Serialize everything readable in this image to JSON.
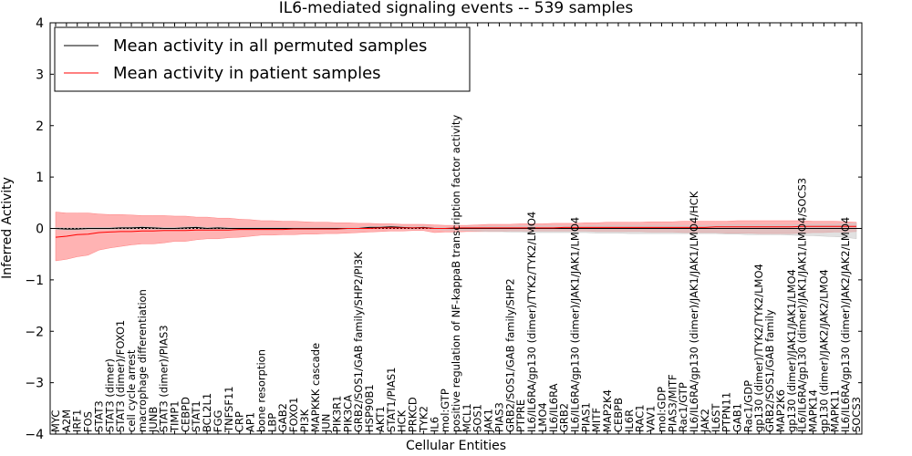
{
  "chart_data": {
    "type": "line",
    "title": "IL6-mediated signaling events -- 539 samples",
    "xlabel": "Cellular Entities",
    "ylabel": "Inferred Activity",
    "ylim": [
      -4,
      4
    ],
    "yticks": [
      -4,
      -3,
      -2,
      -1,
      0,
      1,
      2,
      3,
      4
    ],
    "grid": false,
    "legend_position": "top-left",
    "colors": {
      "permuted": "#000000",
      "patient": "#ff0000",
      "patient_band": "#ff8080",
      "permuted_band": "#c8c8c8"
    },
    "categories": [
      "MYC",
      "A2M",
      "IRF1",
      "FOS",
      "STAT3",
      "STAT3 (dimer)",
      "STAT3 (dimer)/FOXO1",
      "cell cycle arrest",
      "macrophage differentiation",
      "JUNB",
      "STAT3 (dimer)/PIAS3",
      "TIMP1",
      "CEBPD",
      "STAT1",
      "BCL2L1",
      "FGG",
      "TNFSF11",
      "CRP",
      "AP1",
      "bone resorption",
      "LBP",
      "GAB2",
      "FOXO1",
      "PI3K",
      "MAPKKK cascade",
      "JUN",
      "PIK3R1",
      "PIK3CA",
      "GRB2/SOS1/GAB family/SHP2/PI3K",
      "HSP90B1",
      "AKT1",
      "STAT1/PIAS1",
      "HCK",
      "PRKCD",
      "TYK2",
      "IL6",
      "mol:GTP",
      "positive regulation of NF-kappaB transcription factor activity",
      "MCL1",
      "SOS1",
      "JAK1",
      "PIAS3",
      "GRB2/SOS1/GAB family/SHP2",
      "PTPRE",
      "IL6/IL6RA/gp130 (dimer)/TYK2/TYK2/LMO4",
      "LMO4",
      "IL6/IL6RA",
      "GRB2",
      "IL6/IL6RA/gp130 (dimer)/JAK1/JAK1/LMO4",
      "PIAS1",
      "MITF",
      "MAP2K4",
      "CEBPB",
      "IL6R",
      "RAC1",
      "VAV1",
      "mol:GDP",
      "PIAS3/MITF",
      "Rac1/GTP",
      "IL6/IL6RA/gp130 (dimer)/JAK1/JAK1/LMO4/HCK",
      "JAK2",
      "IL6ST",
      "PTPN11",
      "GAB1",
      "Rac1/GDP",
      "gp130 (dimer)/TYK2/TYK2/LMO4",
      "GRB2/SOS1/GAB family",
      "MAP2K6",
      "gp130 (dimer)/JAK1/JAK1/LMO4",
      "IL6/IL6RA/gp130 (dimer)/JAK1/JAK1/LMO4/SOCS3",
      "MAPK14",
      "gp130 (dimer)/JAK2/JAK2/LMO4",
      "MAPK11",
      "IL6/IL6RA/gp130 (dimer)/JAK2/JAK2/LMO4",
      "SOCS3"
    ],
    "series": [
      {
        "name": "Mean activity in all permuted samples",
        "values": [
          0,
          -0.01,
          -0.01,
          0,
          0,
          0,
          0.01,
          0.01,
          0.02,
          0.01,
          0,
          0,
          0.01,
          0.02,
          0,
          0.01,
          0,
          0,
          0,
          0,
          0,
          0,
          0,
          0,
          0,
          0,
          0,
          0,
          0,
          0.02,
          0.02,
          0.03,
          0.02,
          0.01,
          0.02,
          0,
          0,
          0,
          0,
          0,
          0,
          0,
          0,
          0,
          0,
          0,
          0,
          0,
          0,
          0,
          0,
          0,
          0,
          0,
          0,
          0,
          0,
          0,
          0,
          0,
          0,
          0,
          0,
          0,
          0,
          0,
          0,
          0,
          0,
          0,
          0,
          0,
          0,
          0,
          0
        ],
        "band": {
          "lower": [
            -0.02,
            -0.03,
            -0.03,
            -0.02,
            -0.02,
            -0.02,
            -0.01,
            -0.01,
            0,
            -0.01,
            -0.02,
            -0.02,
            -0.01,
            0,
            -0.02,
            -0.01,
            -0.02,
            -0.02,
            -0.02,
            -0.02,
            -0.02,
            -0.02,
            -0.02,
            -0.02,
            -0.02,
            -0.02,
            -0.02,
            -0.02,
            -0.02,
            0,
            0,
            0.01,
            0,
            -0.01,
            0,
            -0.02,
            -0.03,
            -0.03,
            -0.04,
            -0.05,
            -0.06,
            -0.06,
            -0.07,
            -0.07,
            -0.08,
            -0.08,
            -0.08,
            -0.08,
            -0.08,
            -0.08,
            -0.09,
            -0.09,
            -0.09,
            -0.1,
            -0.1,
            -0.1,
            -0.1,
            -0.1,
            -0.1,
            -0.1,
            -0.1,
            -0.1,
            -0.11,
            -0.11,
            -0.12,
            -0.12,
            -0.12,
            -0.12,
            -0.13,
            -0.14,
            -0.14,
            -0.15,
            -0.16,
            -0.17,
            -0.2
          ],
          "upper": [
            0.02,
            0.01,
            0.01,
            0.02,
            0.02,
            0.02,
            0.03,
            0.03,
            0.04,
            0.03,
            0.02,
            0.02,
            0.03,
            0.04,
            0.02,
            0.03,
            0.02,
            0.02,
            0.02,
            0.02,
            0.02,
            0.02,
            0.02,
            0.02,
            0.02,
            0.02,
            0.02,
            0.02,
            0.02,
            0.04,
            0.04,
            0.05,
            0.04,
            0.03,
            0.04,
            0.02,
            0.02,
            0.02,
            0.03,
            0.03,
            0.04,
            0.04,
            0.04,
            0.05,
            0.05,
            0.05,
            0.05,
            0.05,
            0.05,
            0.05,
            0.06,
            0.06,
            0.06,
            0.06,
            0.06,
            0.06,
            0.06,
            0.06,
            0.06,
            0.06,
            0.06,
            0.06,
            0.07,
            0.07,
            0.07,
            0.07,
            0.07,
            0.07,
            0.07,
            0.08,
            0.08,
            0.08,
            0.08,
            0.09,
            0.1
          ]
        }
      },
      {
        "name": "Mean activity in patient samples",
        "values": [
          -0.17,
          -0.15,
          -0.12,
          -0.11,
          -0.08,
          -0.07,
          -0.06,
          -0.06,
          -0.05,
          -0.05,
          -0.04,
          -0.04,
          -0.04,
          -0.03,
          -0.03,
          -0.03,
          -0.03,
          -0.02,
          -0.02,
          -0.02,
          -0.02,
          -0.02,
          -0.01,
          -0.01,
          -0.01,
          -0.01,
          -0.01,
          0,
          0,
          0,
          0.01,
          0.01,
          0.01,
          0.01,
          0.01,
          0,
          0,
          0.01,
          0.01,
          0.01,
          0.01,
          0.01,
          0.01,
          0.01,
          0.01,
          0.01,
          0.01,
          0.02,
          0.02,
          0.02,
          0.02,
          0.02,
          0.02,
          0.02,
          0.02,
          0.02,
          0.02,
          0.02,
          0.02,
          0.02,
          0.02,
          0.03,
          0.03,
          0.03,
          0.03,
          0.03,
          0.03,
          0.03,
          0.03,
          0.04,
          0.04,
          0.04,
          0.04,
          0.04,
          0.04
        ],
        "band": {
          "lower": [
            -0.63,
            -0.6,
            -0.55,
            -0.52,
            -0.42,
            -0.38,
            -0.35,
            -0.32,
            -0.3,
            -0.3,
            -0.28,
            -0.25,
            -0.25,
            -0.22,
            -0.2,
            -0.2,
            -0.18,
            -0.17,
            -0.15,
            -0.13,
            -0.13,
            -0.12,
            -0.12,
            -0.11,
            -0.11,
            -0.1,
            -0.1,
            -0.09,
            -0.08,
            -0.07,
            -0.06,
            -0.05,
            -0.05,
            -0.04,
            -0.04,
            -0.08,
            -0.07,
            -0.07,
            -0.06,
            -0.06,
            -0.06,
            -0.06,
            -0.05,
            -0.05,
            -0.05,
            -0.05,
            -0.05,
            -0.05,
            -0.05,
            -0.05,
            -0.06,
            -0.06,
            -0.06,
            -0.06,
            -0.06,
            -0.07,
            -0.07,
            -0.07,
            -0.08,
            -0.08,
            -0.08,
            -0.08,
            -0.09,
            -0.09,
            -0.09,
            -0.1,
            -0.1,
            -0.1,
            -0.1,
            -0.09,
            -0.08,
            -0.08,
            -0.07,
            -0.07,
            -0.06
          ],
          "upper": [
            0.32,
            0.3,
            0.3,
            0.3,
            0.28,
            0.27,
            0.27,
            0.26,
            0.25,
            0.25,
            0.25,
            0.24,
            0.24,
            0.22,
            0.22,
            0.2,
            0.2,
            0.18,
            0.17,
            0.15,
            0.15,
            0.14,
            0.14,
            0.13,
            0.12,
            0.12,
            0.11,
            0.11,
            0.1,
            0.1,
            0.09,
            0.09,
            0.08,
            0.08,
            0.08,
            0.07,
            0.06,
            0.06,
            0.06,
            0.07,
            0.08,
            0.08,
            0.08,
            0.09,
            0.09,
            0.09,
            0.1,
            0.1,
            0.1,
            0.11,
            0.11,
            0.12,
            0.12,
            0.12,
            0.12,
            0.13,
            0.13,
            0.13,
            0.14,
            0.14,
            0.14,
            0.14,
            0.14,
            0.15,
            0.15,
            0.15,
            0.15,
            0.15,
            0.15,
            0.15,
            0.14,
            0.14,
            0.14,
            0.13,
            0.12
          ]
        }
      }
    ]
  }
}
